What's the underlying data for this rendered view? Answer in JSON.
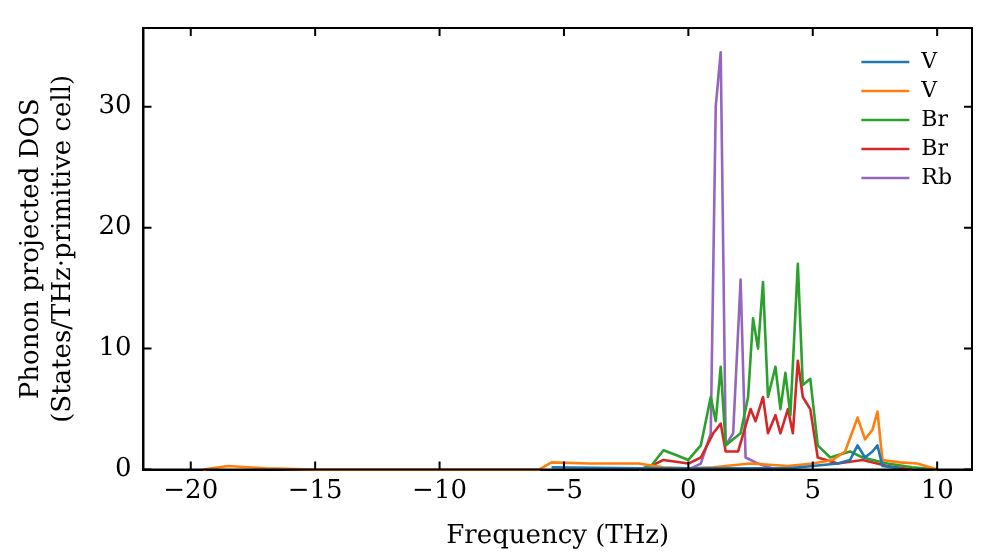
{
  "chart_data": {
    "type": "line",
    "xlabel": "Frequency (THz)",
    "ylabel": "Phonon projected DOS\n(States/THz·primitive cell)",
    "xlim": [
      -21.9,
      11.4
    ],
    "ylim": [
      0,
      36.5
    ],
    "xticks": [
      -20,
      -15,
      -10,
      -5,
      0,
      5,
      10
    ],
    "yticks": [
      0,
      10,
      20,
      30
    ],
    "legend": "top right",
    "grid": false,
    "marker": "none",
    "line_style": "solid",
    "series": [
      {
        "name": "V",
        "color": "#1f77b4",
        "x": [
          -5.5,
          -2,
          2,
          4,
          5,
          6,
          6.5,
          6.8,
          7.1,
          7.4,
          7.6,
          7.8,
          8.5
        ],
        "values": [
          0.2,
          0.1,
          0.1,
          0.1,
          0.3,
          0.5,
          0.8,
          2,
          1,
          1.5,
          2,
          0.3,
          0.1
        ]
      },
      {
        "name": "V",
        "color": "#ff7f0e",
        "x": [
          -19.5,
          -18.5,
          -17,
          -15,
          -6,
          -5.5,
          -4,
          -2,
          -1,
          0,
          1,
          2.5,
          4,
          5,
          5.8,
          6.3,
          6.8,
          7.1,
          7.4,
          7.6,
          7.8,
          8.5,
          9.2,
          10
        ],
        "values": [
          0,
          0.3,
          0.1,
          0,
          0,
          0.6,
          0.5,
          0.5,
          0.2,
          0.1,
          0.2,
          0.5,
          0.3,
          0.5,
          0.8,
          1.5,
          4.3,
          2.5,
          3.3,
          4.8,
          0.8,
          0.6,
          0.5,
          0
        ]
      },
      {
        "name": "Br",
        "color": "#2ca02c",
        "x": [
          -2,
          -1.5,
          -1,
          -0.5,
          0,
          0.5,
          0.9,
          1.1,
          1.3,
          1.5,
          1.8,
          2.1,
          2.4,
          2.6,
          2.8,
          3.0,
          3.2,
          3.5,
          3.7,
          3.9,
          4.1,
          4.4,
          4.6,
          4.9,
          5.2,
          5.7,
          6.5,
          7,
          8,
          9,
          10
        ],
        "values": [
          0,
          0.3,
          1.6,
          1.2,
          0.8,
          2,
          6,
          4,
          8.5,
          2,
          2.5,
          3,
          6,
          12.5,
          10,
          15.5,
          6,
          8.5,
          5,
          8,
          4.5,
          17,
          7,
          7.5,
          2,
          1,
          1.5,
          1,
          0.5,
          0.2,
          0
        ]
      },
      {
        "name": "Br",
        "color": "#d62728",
        "x": [
          -2,
          -1.5,
          -1,
          0,
          0.5,
          1.0,
          1.3,
          1.5,
          2.0,
          2.5,
          2.7,
          3.0,
          3.2,
          3.5,
          3.7,
          4.0,
          4.2,
          4.4,
          4.6,
          4.9,
          5.2,
          6,
          7,
          8,
          9
        ],
        "values": [
          0,
          0.3,
          0.8,
          0.5,
          1,
          3,
          3.8,
          1.5,
          1.5,
          5,
          4,
          6,
          3,
          4.5,
          3,
          5,
          3,
          9,
          6,
          5,
          1,
          0.5,
          0.8,
          0.3,
          0
        ]
      },
      {
        "name": "Rb",
        "color": "#9467bd",
        "x": [
          0,
          0.5,
          0.9,
          1.1,
          1.3,
          1.5,
          1.8,
          2.1,
          2.3,
          2.8,
          3.5
        ],
        "values": [
          0,
          0.5,
          3,
          30,
          34.5,
          2,
          3,
          15.7,
          1,
          0.5,
          0
        ]
      }
    ]
  }
}
